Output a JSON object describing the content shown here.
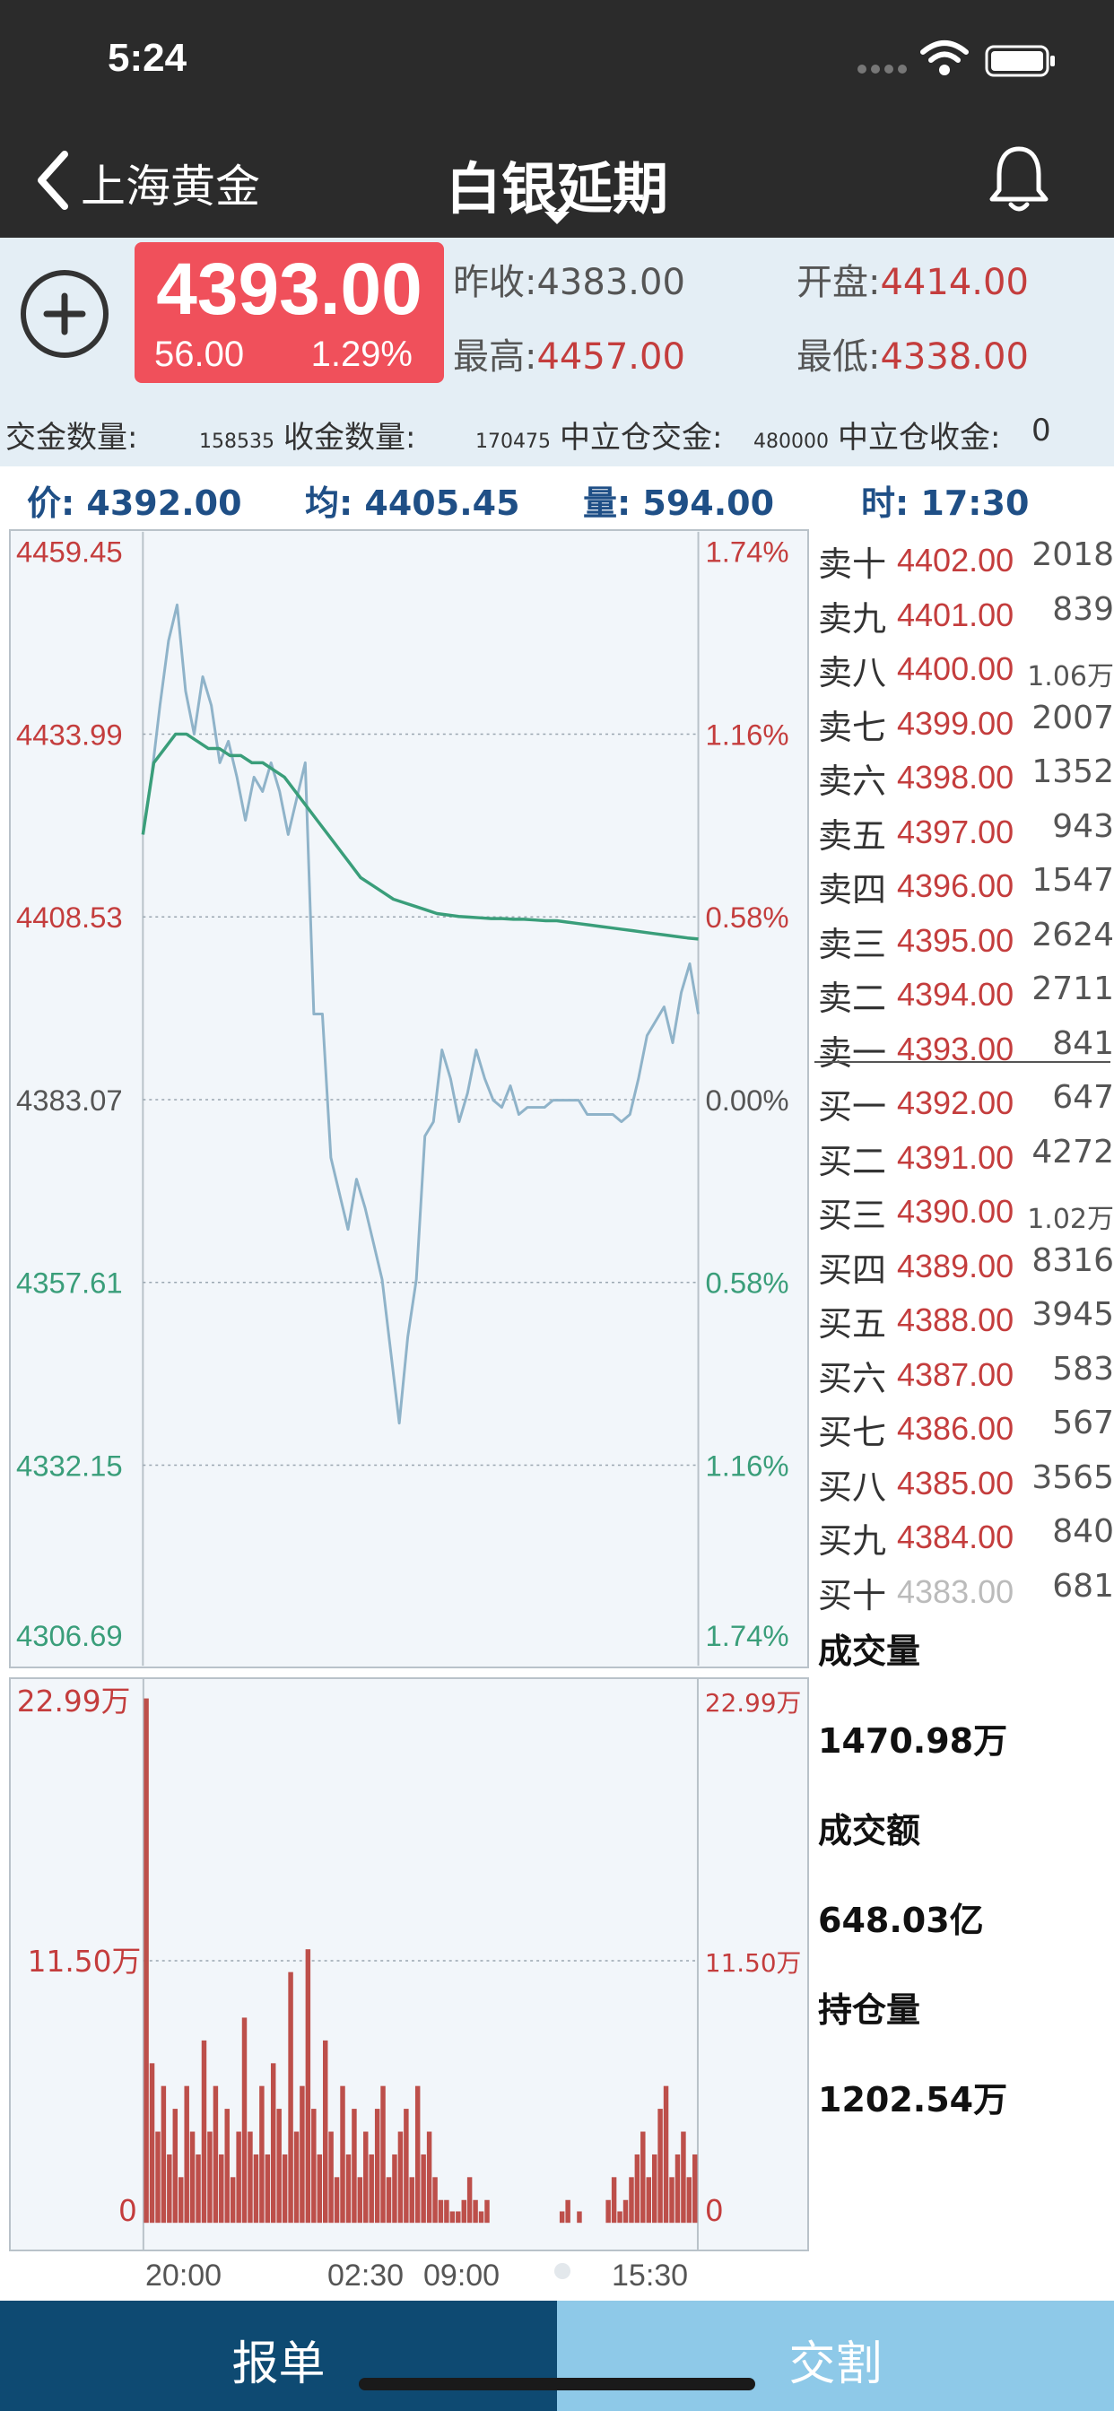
{
  "status_bar": {
    "time": "5:24"
  },
  "nav": {
    "back_label": "上海黄金",
    "title": "白银延期"
  },
  "quote": {
    "price": "4393.00",
    "change": "56.00",
    "change_pct": "1.29%",
    "prev_close_label": "昨收:",
    "prev_close": "4383.00",
    "open_label": "开盘:",
    "open": "4414.00",
    "high_label": "最高:",
    "high": "4457.00",
    "low_label": "最低:",
    "low": "4338.00",
    "counts": {
      "deliver_gold_label": "交金数量:",
      "deliver_gold": "158535",
      "receive_gold_label": "收金数量:",
      "receive_gold": "170475",
      "neutral_deliver_label": "中立仓交金:",
      "neutral_deliver": "480000",
      "neutral_receive_label": "中立仓收金:",
      "neutral_receive": "0"
    }
  },
  "info_row": {
    "price": "价: 4392.00",
    "avg": "均: 4405.45",
    "volume": "量: 594.00",
    "time": "时: 17:30"
  },
  "colors": {
    "red": "#c43d3d",
    "green": "#3a9e7a",
    "price_line": "#8fb3c9",
    "avg_line": "#3a9e7a",
    "volume_bar": "#bd4f4a"
  },
  "chart_data": [
    {
      "type": "line",
      "y_left_ticks": [
        "4459.45",
        "4433.99",
        "4408.53",
        "4383.07",
        "4357.61",
        "4332.15",
        "4306.69"
      ],
      "y_right_ticks": [
        "1.74%",
        "1.16%",
        "0.58%",
        "0.00%",
        "0.58%",
        "1.16%",
        "1.74%"
      ],
      "ylim": [
        4306.69,
        4459.45
      ],
      "grid": true,
      "x_ticks": [
        "20:00",
        "02:30",
        "09:00",
        "15:30"
      ],
      "series": [
        {
          "values": [
            4420,
            4428,
            4438,
            4447,
            4452,
            4440,
            4434,
            4442,
            4438,
            4430,
            4433,
            4428,
            4422,
            4428,
            4426,
            4430,
            4426,
            4420,
            4425,
            4430,
            4395,
            4395,
            4375,
            4370,
            4365,
            4372,
            4368,
            4363,
            4358,
            4348,
            4338,
            4350,
            4358,
            4378,
            4380,
            4390,
            4386,
            4380,
            4384,
            4390,
            4386,
            4383,
            4382,
            4385,
            4381,
            4382,
            4382,
            4382,
            4383,
            4383,
            4383,
            4383,
            4381,
            4381,
            4381,
            4381,
            4380,
            4381,
            4386,
            4392,
            4394,
            4396,
            4391,
            4398,
            4402,
            4395
          ]
        },
        {
          "values": [
            4420,
            4430,
            4432,
            4434,
            4434,
            4433,
            4432,
            4432,
            4431,
            4431,
            4430,
            4430,
            4429,
            4428,
            4426,
            4424,
            4422,
            4420,
            4418,
            4416,
            4414,
            4413,
            4412,
            4411,
            4410.5,
            4410,
            4409.5,
            4409,
            4408.8,
            4408.6,
            4408.5,
            4408.4,
            4408.3,
            4408.3,
            4408.2,
            4408.2,
            4408.1,
            4408,
            4408,
            4407.8,
            4407.6,
            4407.4,
            4407.2,
            4407,
            4406.8,
            4406.6,
            4406.4,
            4406.2,
            4406,
            4405.8,
            4405.6,
            4405.45
          ]
        }
      ]
    },
    {
      "type": "bar",
      "y_ticks_left": [
        "22.99万",
        "11.50万",
        "0"
      ],
      "y_ticks_right": [
        "22.99万",
        "11.50万",
        "0"
      ],
      "ylim": [
        0,
        22.99
      ],
      "grid": true,
      "values": [
        23,
        7,
        4,
        6,
        3,
        5,
        2,
        6,
        4,
        3,
        8,
        4,
        6,
        3,
        5,
        2,
        4,
        9,
        4,
        3,
        6,
        3,
        7,
        5,
        3,
        11,
        4,
        6,
        12,
        5,
        3,
        8,
        4,
        2,
        6,
        3,
        5,
        2,
        4,
        3,
        5,
        6,
        2,
        3,
        4,
        5,
        2,
        6,
        3,
        4,
        2,
        1,
        1,
        0.5,
        0.5,
        1,
        2,
        1,
        0.5,
        1,
        0,
        0,
        0,
        0,
        0,
        0,
        0,
        0,
        0,
        0,
        0,
        0,
        0.5,
        1,
        0,
        0.5,
        0,
        0,
        0,
        0,
        1,
        2,
        0.5,
        1,
        2,
        3,
        4,
        2,
        3,
        5,
        6,
        2,
        3,
        4,
        2,
        3
      ]
    }
  ],
  "order_book": {
    "asks": [
      {
        "label": "卖十",
        "price": "4402.00",
        "qty": "2018"
      },
      {
        "label": "卖九",
        "price": "4401.00",
        "qty": "839"
      },
      {
        "label": "卖八",
        "price": "4400.00",
        "qty": "1.06万"
      },
      {
        "label": "卖七",
        "price": "4399.00",
        "qty": "2007"
      },
      {
        "label": "卖六",
        "price": "4398.00",
        "qty": "1352"
      },
      {
        "label": "卖五",
        "price": "4397.00",
        "qty": "943"
      },
      {
        "label": "卖四",
        "price": "4396.00",
        "qty": "1547"
      },
      {
        "label": "卖三",
        "price": "4395.00",
        "qty": "2624"
      },
      {
        "label": "卖二",
        "price": "4394.00",
        "qty": "2711"
      },
      {
        "label": "卖一",
        "price": "4393.00",
        "qty": "841"
      }
    ],
    "bids": [
      {
        "label": "买一",
        "price": "4392.00",
        "qty": "647"
      },
      {
        "label": "买二",
        "price": "4391.00",
        "qty": "4272"
      },
      {
        "label": "买三",
        "price": "4390.00",
        "qty": "1.02万"
      },
      {
        "label": "买四",
        "price": "4389.00",
        "qty": "8316"
      },
      {
        "label": "买五",
        "price": "4388.00",
        "qty": "3945"
      },
      {
        "label": "买六",
        "price": "4387.00",
        "qty": "583"
      },
      {
        "label": "买七",
        "price": "4386.00",
        "qty": "567"
      },
      {
        "label": "买八",
        "price": "4385.00",
        "qty": "3565"
      },
      {
        "label": "买九",
        "price": "4384.00",
        "qty": "840"
      },
      {
        "label": "买十",
        "price": "4383.00",
        "qty": "681"
      }
    ]
  },
  "summary": {
    "volume_label": "成交量",
    "volume": "1470.98万",
    "amount_label": "成交额",
    "amount": "648.03亿",
    "open_interest_label": "持仓量",
    "open_interest": "1202.54万"
  },
  "bottom": {
    "order_label": "报单",
    "delivery_label": "交割"
  }
}
